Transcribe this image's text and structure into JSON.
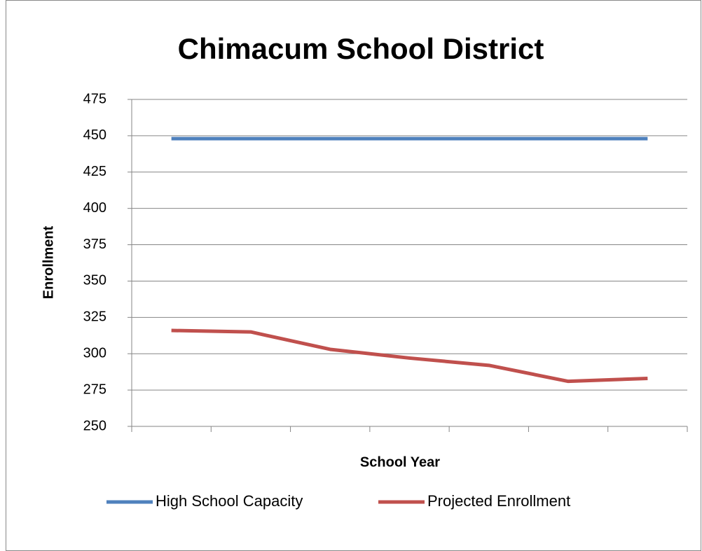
{
  "chart_data": {
    "type": "line",
    "title": "Chimacum School District",
    "x_label": "School Year",
    "y_label": "Enrollment",
    "categories": [
      null,
      null,
      null,
      null,
      null,
      null,
      null
    ],
    "series": [
      {
        "name": "High School Capacity",
        "color": "#4f81bd",
        "values": [
          448,
          448,
          448,
          448,
          448,
          448,
          448
        ]
      },
      {
        "name": "Projected Enrollment",
        "color": "#c0504d",
        "values": [
          316,
          315,
          303,
          297,
          292,
          281,
          283
        ]
      }
    ],
    "ylim": [
      250,
      475
    ],
    "yticks": [
      250,
      275,
      300,
      325,
      350,
      375,
      400,
      425,
      450,
      475
    ],
    "grid": true,
    "legend": "bottom"
  }
}
